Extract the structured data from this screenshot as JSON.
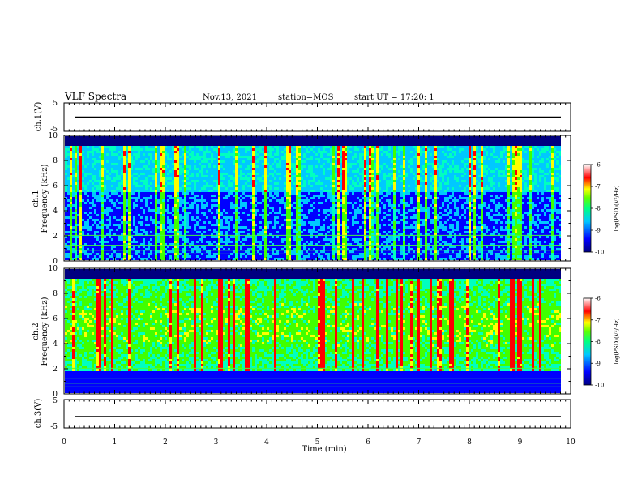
{
  "header": {
    "title": "VLF Spectra",
    "date": "Nov.13, 2021",
    "station": "station=MOS",
    "start_ut": "start UT =  17:20: 1"
  },
  "chart_data": [
    {
      "type": "line",
      "panel": "ch1-waveform",
      "ylabel": "ch.1(V)",
      "ylim": [
        -5,
        5
      ],
      "y_tick_labels": [
        "5",
        "-5"
      ],
      "xlim": [
        0,
        10
      ],
      "baseline": 0
    },
    {
      "type": "heatmap",
      "panel": "ch1-spectrogram",
      "ylabel": "ch.1\nFrequency (kHz)",
      "ylim": [
        0,
        10
      ],
      "y_tick_labels": [
        "0",
        "2",
        "4",
        "6",
        "8",
        "10"
      ],
      "xlim": [
        0,
        10
      ],
      "colorbar": {
        "label": "log(PSD)(V²/Hz)",
        "range": [
          -10,
          -6
        ],
        "tick_labels": [
          "-6",
          "-7",
          "-8",
          "-9",
          "-10"
        ]
      }
    },
    {
      "type": "heatmap",
      "panel": "ch2-spectrogram",
      "ylabel": "ch.2\nFrequency (kHz)",
      "ylim": [
        0,
        10
      ],
      "y_tick_labels": [
        "0",
        "2",
        "4",
        "6",
        "8",
        "10"
      ],
      "xlim": [
        0,
        10
      ],
      "colorbar": {
        "label": "log(PSD)(V²/Hz)",
        "range": [
          -10,
          -6
        ],
        "tick_labels": [
          "-6",
          "-7",
          "-8",
          "-9",
          "-10"
        ]
      }
    },
    {
      "type": "line",
      "panel": "ch3-waveform",
      "ylabel": "ch.3(V)",
      "ylim": [
        -5,
        5
      ],
      "y_tick_labels": [
        "5",
        "-5"
      ],
      "xlim": [
        0,
        10
      ],
      "baseline": -1
    }
  ],
  "x_axis": {
    "label": "Time (min)",
    "tick_labels": [
      "0",
      "1",
      "2",
      "3",
      "4",
      "5",
      "6",
      "7",
      "8",
      "9",
      "10"
    ]
  },
  "colors": {
    "colormap": [
      "#000080",
      "#0000ff",
      "#00c8ff",
      "#00ffc0",
      "#40ff00",
      "#ffff00",
      "#ff0000",
      "#ffffff"
    ]
  }
}
